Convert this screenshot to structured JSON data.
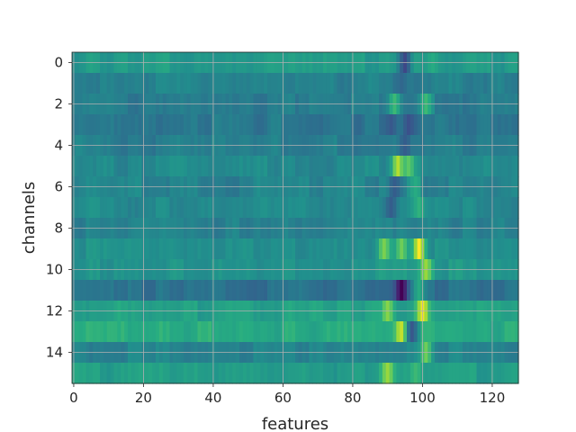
{
  "chart_data": {
    "type": "heatmap",
    "title": "",
    "xlabel": "features",
    "ylabel": "channels",
    "xlim": [
      -0.5,
      127.5
    ],
    "ylim": [
      15.5,
      -0.5
    ],
    "n_features": 128,
    "n_channels": 16,
    "x_ticks": [
      0,
      20,
      40,
      60,
      80,
      100,
      120
    ],
    "y_ticks": [
      0,
      2,
      4,
      6,
      8,
      10,
      12,
      14
    ],
    "grid": true,
    "colormap": "viridis",
    "value_range": [
      0,
      1
    ],
    "row_base_values": [
      0.55,
      0.45,
      0.42,
      0.4,
      0.43,
      0.47,
      0.45,
      0.48,
      0.44,
      0.5,
      0.52,
      0.38,
      0.57,
      0.62,
      0.45,
      0.56
    ],
    "hotspots": [
      {
        "channel": 0,
        "feature": 95,
        "value": 0.22
      },
      {
        "channel": 0,
        "feature": 103,
        "value": 0.62
      },
      {
        "channel": 1,
        "feature": 94,
        "value": 0.34
      },
      {
        "channel": 2,
        "feature": 92,
        "value": 0.68
      },
      {
        "channel": 2,
        "feature": 96,
        "value": 0.4
      },
      {
        "channel": 2,
        "feature": 101,
        "value": 0.68
      },
      {
        "channel": 3,
        "feature": 91,
        "value": 0.28
      },
      {
        "channel": 3,
        "feature": 96,
        "value": 0.25
      },
      {
        "channel": 4,
        "feature": 95,
        "value": 0.3
      },
      {
        "channel": 5,
        "feature": 93,
        "value": 0.9
      },
      {
        "channel": 5,
        "feature": 96,
        "value": 0.75
      },
      {
        "channel": 6,
        "feature": 92,
        "value": 0.3
      },
      {
        "channel": 6,
        "feature": 98,
        "value": 0.62
      },
      {
        "channel": 7,
        "feature": 91,
        "value": 0.3
      },
      {
        "channel": 7,
        "feature": 99,
        "value": 0.65
      },
      {
        "channel": 8,
        "feature": 94,
        "value": 0.48
      },
      {
        "channel": 9,
        "feature": 89,
        "value": 0.8
      },
      {
        "channel": 9,
        "feature": 94,
        "value": 0.78
      },
      {
        "channel": 9,
        "feature": 99,
        "value": 1.0
      },
      {
        "channel": 10,
        "feature": 101,
        "value": 0.85
      },
      {
        "channel": 10,
        "feature": 88,
        "value": 0.58
      },
      {
        "channel": 11,
        "feature": 94,
        "value": 0.0
      },
      {
        "channel": 11,
        "feature": 99,
        "value": 0.62
      },
      {
        "channel": 12,
        "feature": 100,
        "value": 0.98
      },
      {
        "channel": 12,
        "feature": 90,
        "value": 0.82
      },
      {
        "channel": 13,
        "feature": 94,
        "value": 0.95
      },
      {
        "channel": 13,
        "feature": 97,
        "value": 0.28
      },
      {
        "channel": 14,
        "feature": 101,
        "value": 0.78
      },
      {
        "channel": 15,
        "feature": 90,
        "value": 0.85
      },
      {
        "channel": 15,
        "feature": 98,
        "value": 0.68
      }
    ]
  }
}
